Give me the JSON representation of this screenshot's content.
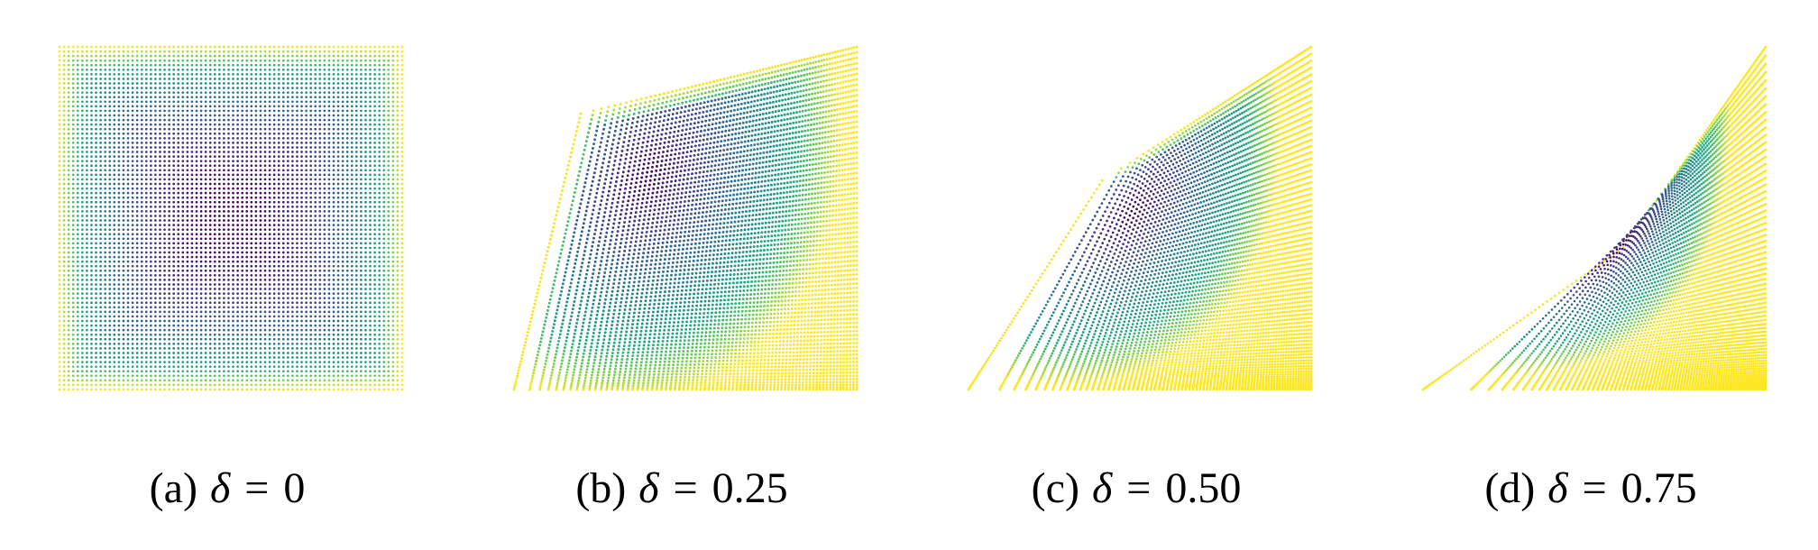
{
  "figure": {
    "panels": [
      {
        "tag": "(a)",
        "symbol": "δ",
        "relation": "=",
        "value": "0",
        "delta": 0
      },
      {
        "tag": "(b)",
        "symbol": "δ",
        "relation": "=",
        "value": "0.25",
        "delta": 0.25
      },
      {
        "tag": "(c)",
        "symbol": "δ",
        "relation": "=",
        "value": "0.50",
        "delta": 0.5
      },
      {
        "tag": "(d)",
        "symbol": "δ",
        "relation": "=",
        "value": "0.75",
        "delta": 0.75
      }
    ],
    "colormap": "viridis"
  }
}
